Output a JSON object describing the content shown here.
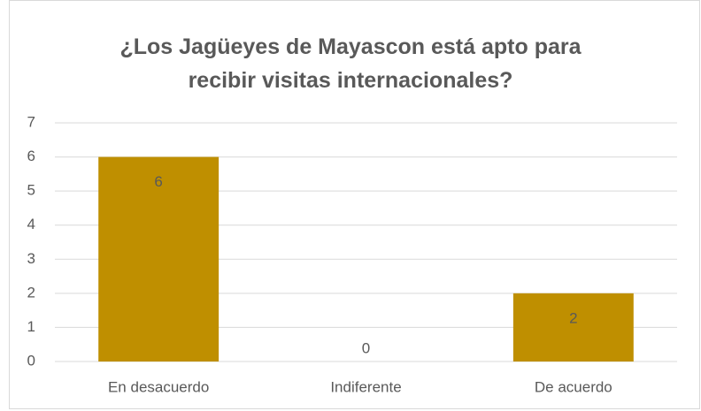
{
  "chart_data": {
    "type": "bar",
    "title": "¿Los Jagüeyes de Mayascon está apto para recibir visitas internacionales?",
    "categories": [
      "En desacuerdo",
      "Indiferente",
      "De acuerdo"
    ],
    "values": [
      6,
      0,
      2
    ],
    "color": "#bf8f00",
    "ylim": [
      0,
      7
    ],
    "yticks": [
      0,
      1,
      2,
      3,
      4,
      5,
      6,
      7
    ],
    "grid": true,
    "data_labels": true
  }
}
